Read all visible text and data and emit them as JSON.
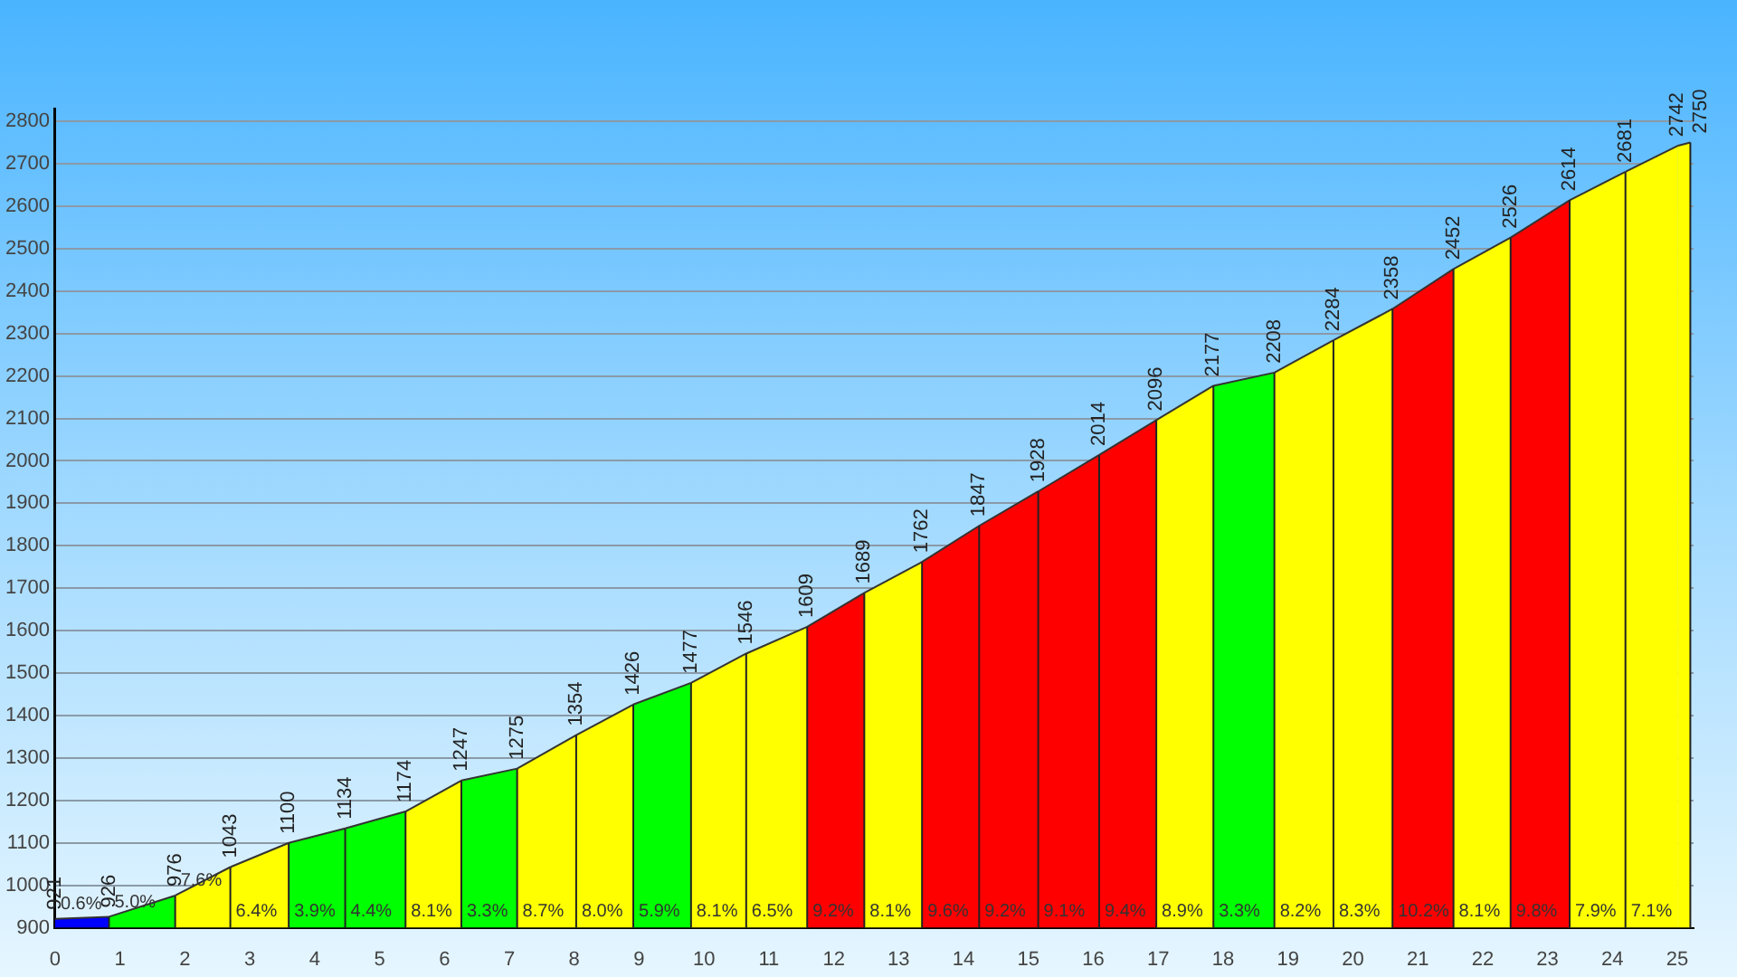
{
  "chart_data": {
    "type": "area",
    "series": [
      {
        "color": "#0000ff",
        "x": [
          0,
          0.83
        ],
        "values": [
          921,
          926
        ],
        "value_labels": [
          "921",
          "926"
        ]
      },
      {
        "color": "#00ff00",
        "x": [
          0.83,
          1.85
        ],
        "values": [
          926,
          976
        ],
        "value_labels": [
          null,
          "976"
        ]
      },
      {
        "color": "#ffff00",
        "x": [
          1.85,
          2.7
        ],
        "values": [
          976,
          1043
        ],
        "value_labels": [
          null,
          "1043"
        ]
      },
      {
        "color": "#ffff00",
        "x": [
          2.7,
          3.6
        ],
        "values": [
          1043,
          1100
        ],
        "value_labels": [
          null,
          "1100"
        ]
      },
      {
        "color": "#00ff00",
        "x": [
          3.6,
          4.47
        ],
        "values": [
          1100,
          1134
        ],
        "value_labels": [
          null,
          "1134"
        ]
      },
      {
        "color": "#00ff00",
        "x": [
          4.47,
          5.4
        ],
        "values": [
          1134,
          1174
        ],
        "value_labels": [
          null,
          "1174"
        ]
      },
      {
        "color": "#ffff00",
        "x": [
          5.4,
          6.26
        ],
        "values": [
          1174,
          1247
        ],
        "value_labels": [
          null,
          "1247"
        ]
      },
      {
        "color": "#00ff00",
        "x": [
          6.26,
          7.12
        ],
        "values": [
          1247,
          1275
        ],
        "value_labels": [
          null,
          "1275"
        ]
      },
      {
        "color": "#ffff00",
        "x": [
          7.12,
          8.03
        ],
        "values": [
          1275,
          1354
        ],
        "value_labels": [
          null,
          "1354"
        ]
      },
      {
        "color": "#ffff00",
        "x": [
          8.03,
          8.91
        ],
        "values": [
          1354,
          1426
        ],
        "value_labels": [
          null,
          "1426"
        ]
      },
      {
        "color": "#00ff00",
        "x": [
          8.91,
          9.8
        ],
        "values": [
          1426,
          1477
        ],
        "value_labels": [
          null,
          "1477"
        ]
      },
      {
        "color": "#ffff00",
        "x": [
          9.8,
          10.65
        ],
        "values": [
          1477,
          1546
        ],
        "value_labels": [
          null,
          "1546"
        ]
      },
      {
        "color": "#ffff00",
        "x": [
          10.65,
          11.59
        ],
        "values": [
          1546,
          1609
        ],
        "value_labels": [
          null,
          "1609"
        ]
      },
      {
        "color": "#ff0000",
        "x": [
          11.59,
          12.47
        ],
        "values": [
          1609,
          1689
        ],
        "value_labels": [
          null,
          "1689"
        ]
      },
      {
        "color": "#ffff00",
        "x": [
          12.47,
          13.36
        ],
        "values": [
          1689,
          1762
        ],
        "value_labels": [
          null,
          "1762"
        ]
      },
      {
        "color": "#ff0000",
        "x": [
          13.36,
          14.24
        ],
        "values": [
          1762,
          1847
        ],
        "value_labels": [
          null,
          "1847"
        ]
      },
      {
        "color": "#ff0000",
        "x": [
          14.24,
          15.15
        ],
        "values": [
          1847,
          1928
        ],
        "value_labels": [
          null,
          "1928"
        ]
      },
      {
        "color": "#ff0000",
        "x": [
          15.15,
          16.09
        ],
        "values": [
          1928,
          2014
        ],
        "value_labels": [
          null,
          "2014"
        ]
      },
      {
        "color": "#ff0000",
        "x": [
          16.09,
          16.97
        ],
        "values": [
          2014,
          2096
        ],
        "value_labels": [
          null,
          "2096"
        ]
      },
      {
        "color": "#ffff00",
        "x": [
          16.97,
          17.85
        ],
        "values": [
          2096,
          2177
        ],
        "value_labels": [
          null,
          "2177"
        ]
      },
      {
        "color": "#00ff00",
        "x": [
          17.85,
          18.79
        ],
        "values": [
          2177,
          2208
        ],
        "value_labels": [
          null,
          "2208"
        ]
      },
      {
        "color": "#ffff00",
        "x": [
          18.79,
          19.7
        ],
        "values": [
          2208,
          2284
        ],
        "value_labels": [
          null,
          "2284"
        ]
      },
      {
        "color": "#ffff00",
        "x": [
          19.7,
          20.61
        ],
        "values": [
          2284,
          2358
        ],
        "value_labels": [
          null,
          "2358"
        ]
      },
      {
        "color": "#ff0000",
        "x": [
          20.61,
          21.55
        ],
        "values": [
          2358,
          2452
        ],
        "value_labels": [
          null,
          "2452"
        ]
      },
      {
        "color": "#ffff00",
        "x": [
          21.55,
          22.43
        ],
        "values": [
          2452,
          2526
        ],
        "value_labels": [
          null,
          "2526"
        ]
      },
      {
        "color": "#ff0000",
        "x": [
          22.43,
          23.34
        ],
        "values": [
          2526,
          2614
        ],
        "value_labels": [
          null,
          "2614"
        ]
      },
      {
        "color": "#ffff00",
        "x": [
          23.34,
          24.2
        ],
        "values": [
          2614,
          2681
        ],
        "value_labels": [
          null,
          "2681"
        ]
      },
      {
        "color": "#ffff00",
        "x": [
          24.2,
          25.0
        ],
        "values": [
          2681,
          2742
        ],
        "value_labels": [
          null,
          "2742"
        ]
      },
      {
        "color": "#ffff00",
        "x": [
          25.0,
          25.2
        ],
        "values": [
          2742,
          2750
        ],
        "value_labels": [
          null,
          "2750"
        ]
      }
    ],
    "xlim": [
      0,
      25.25
    ],
    "xticks": [
      0,
      1,
      2,
      3,
      4,
      5,
      6,
      7,
      8,
      9,
      10,
      11,
      12,
      13,
      14,
      15,
      16,
      17,
      18,
      19,
      20,
      21,
      22,
      23,
      24,
      25
    ],
    "ylim": [
      900,
      2830
    ],
    "yticks": [
      900,
      1000,
      1100,
      1200,
      1300,
      1400,
      1500,
      1600,
      1700,
      1800,
      1900,
      2000,
      2100,
      2200,
      2300,
      2400,
      2500,
      2600,
      2700,
      2800
    ],
    "grid": "y",
    "annotations": [
      {
        "text": "0.6%",
        "x": 0,
        "y": 921
      },
      {
        "text": "5.0%",
        "x": 0.83,
        "y": 926
      },
      {
        "text": "7.6%",
        "x": 1.85,
        "y": 976
      },
      {
        "text": "6.4%",
        "x": 2.7,
        "y": 1043
      },
      {
        "text": "3.9%",
        "x": 3.6,
        "y": 1100
      },
      {
        "text": "4.4%",
        "x": 4.47,
        "y": 1134
      },
      {
        "text": "8.1%",
        "x": 5.4,
        "y": 1174
      },
      {
        "text": "3.3%",
        "x": 6.26,
        "y": 1247
      },
      {
        "text": "8.7%",
        "x": 7.12,
        "y": 1275
      },
      {
        "text": "8.0%",
        "x": 8.03,
        "y": 1354
      },
      {
        "text": "5.9%",
        "x": 8.91,
        "y": 1426
      },
      {
        "text": "8.1%",
        "x": 9.8,
        "y": 1477
      },
      {
        "text": "6.5%",
        "x": 10.65,
        "y": 1546
      },
      {
        "text": "9.2%",
        "x": 11.59,
        "y": 1609
      },
      {
        "text": "8.1%",
        "x": 12.47,
        "y": 1689
      },
      {
        "text": "9.6%",
        "x": 13.36,
        "y": 1762
      },
      {
        "text": "9.2%",
        "x": 14.24,
        "y": 1847
      },
      {
        "text": "9.1%",
        "x": 15.15,
        "y": 1928
      },
      {
        "text": "9.4%",
        "x": 16.09,
        "y": 2014
      },
      {
        "text": "8.9%",
        "x": 16.97,
        "y": 2096
      },
      {
        "text": "3.3%",
        "x": 17.85,
        "y": 2177
      },
      {
        "text": "8.2%",
        "x": 18.79,
        "y": 2208
      },
      {
        "text": "8.3%",
        "x": 19.7,
        "y": 2284
      },
      {
        "text": "10.2%",
        "x": 20.61,
        "y": 2358
      },
      {
        "text": "8.1%",
        "x": 21.55,
        "y": 2452
      },
      {
        "text": "9.8%",
        "x": 22.43,
        "y": 2526
      },
      {
        "text": "7.9%",
        "x": 23.34,
        "y": 2614
      },
      {
        "text": "7.1%",
        "x": 24.2,
        "y": 2681
      }
    ]
  }
}
